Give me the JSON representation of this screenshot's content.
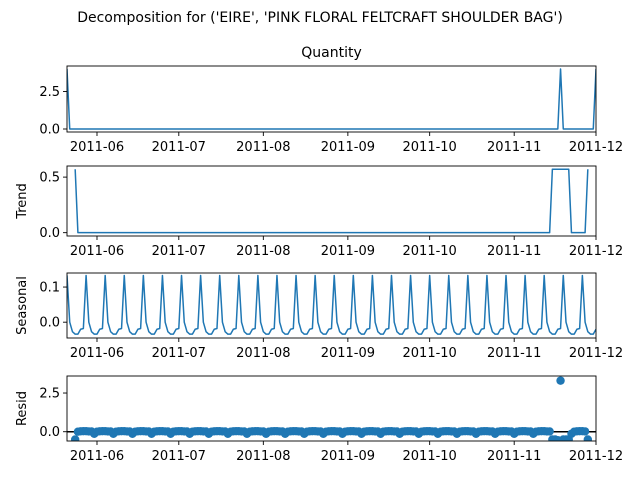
{
  "suptitle": "Decomposition for ('EIRE', 'PINK FLORAL FELTCRAFT SHOULDER BAG')",
  "colors": {
    "series": "#1f77b4",
    "axis": "#000000",
    "background": "#ffffff"
  },
  "chart_data": [
    {
      "type": "line",
      "title": "Quantity",
      "ylabel": "",
      "xlim": [
        "2011-05-21",
        "2011-12-01"
      ],
      "ylim": [
        -0.2,
        4.2
      ],
      "yticks": [
        0.0,
        2.5
      ],
      "ytick_labels": [
        "0.0",
        "2.5"
      ],
      "xtick_labels": [
        "2011-06",
        "2011-07",
        "2011-08",
        "2011-09",
        "2011-10",
        "2011-11",
        "2011-12"
      ],
      "grid": false,
      "points": [
        [
          "2011-05-21",
          4.0
        ],
        [
          "2011-05-22",
          0.0
        ],
        [
          "2011-11-17",
          0.0
        ],
        [
          "2011-11-18",
          4.0
        ],
        [
          "2011-11-19",
          0.0
        ],
        [
          "2011-11-30",
          0.0
        ],
        [
          "2011-12-01",
          4.0
        ]
      ]
    },
    {
      "type": "line",
      "title": "",
      "ylabel": "Trend",
      "xlim": [
        "2011-05-21",
        "2011-12-01"
      ],
      "ylim": [
        -0.03,
        0.6
      ],
      "yticks": [
        0.0,
        0.5
      ],
      "ytick_labels": [
        "0.0",
        "0.5"
      ],
      "xtick_labels": [
        "2011-06",
        "2011-07",
        "2011-08",
        "2011-09",
        "2011-10",
        "2011-11",
        "2011-12"
      ],
      "grid": false,
      "points": [
        [
          "2011-05-24",
          0.571
        ],
        [
          "2011-05-25",
          0.0
        ],
        [
          "2011-11-14",
          0.0
        ],
        [
          "2011-11-15",
          0.571
        ],
        [
          "2011-11-21",
          0.571
        ],
        [
          "2011-11-22",
          0.0
        ],
        [
          "2011-11-27",
          0.0
        ],
        [
          "2011-11-28",
          0.571
        ]
      ]
    },
    {
      "type": "line",
      "title": "",
      "ylabel": "Seasonal",
      "xlim": [
        "2011-05-21",
        "2011-12-01"
      ],
      "ylim": [
        -0.045,
        0.14
      ],
      "yticks": [
        0.0,
        0.1
      ],
      "ytick_labels": [
        "0.0",
        "0.1"
      ],
      "xtick_labels": [
        "2011-06",
        "2011-07",
        "2011-08",
        "2011-09",
        "2011-10",
        "2011-11",
        "2011-12"
      ],
      "grid": false,
      "start": "2011-05-21",
      "end": "2011-12-01",
      "weekly_pattern": [
        0.133,
        0.0,
        -0.027,
        -0.034,
        -0.034,
        -0.02,
        -0.018
      ]
    },
    {
      "type": "scatter",
      "title": "",
      "ylabel": "Resid",
      "xlim": [
        "2011-05-21",
        "2011-12-01"
      ],
      "ylim": [
        -0.6,
        3.6
      ],
      "yticks": [
        0.0,
        2.5
      ],
      "ytick_labels": [
        "0.0",
        "2.5"
      ],
      "xtick_labels": [
        "2011-06",
        "2011-07",
        "2011-08",
        "2011-09",
        "2011-10",
        "2011-11",
        "2011-12"
      ],
      "grid": false,
      "hline": 0.0,
      "start": "2011-05-24",
      "end": "2011-11-28",
      "baseline_pattern": [
        -0.133,
        0.0,
        0.027,
        0.034,
        0.034,
        0.02,
        0.018
      ],
      "outliers": [
        [
          "2011-05-24",
          -0.5
        ],
        [
          "2011-11-15",
          -0.5
        ],
        [
          "2011-11-16",
          -0.5
        ],
        [
          "2011-11-17",
          -0.55
        ],
        [
          "2011-11-18",
          3.3
        ],
        [
          "2011-11-19",
          -0.5
        ],
        [
          "2011-11-20",
          -0.5
        ],
        [
          "2011-11-21",
          -0.5
        ],
        [
          "2011-11-28",
          -0.5
        ]
      ]
    }
  ]
}
